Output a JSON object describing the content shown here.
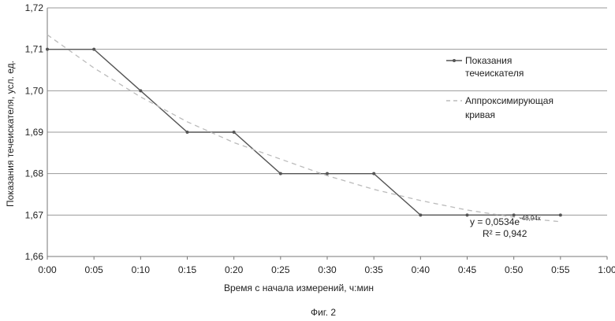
{
  "chart_data": {
    "type": "line",
    "title": "",
    "xlabel": "Время с начала измерений, ч:мин",
    "ylabel": "Показания течеискателя, усл. ед.",
    "x_ticks": [
      "0:00",
      "0:05",
      "0:10",
      "0:15",
      "0:20",
      "0:25",
      "0:30",
      "0:35",
      "0:40",
      "0:45",
      "0:50",
      "0:55",
      "1:00"
    ],
    "y_ticks": [
      "1,66",
      "1,67",
      "1,68",
      "1,69",
      "1,70",
      "1,71",
      "1,72"
    ],
    "xlim": [
      "0:00",
      "1:00"
    ],
    "ylim": [
      1.66,
      1.72
    ],
    "grid": "horizontal",
    "legend_position": "right",
    "series": [
      {
        "name": "Показания течеискателя",
        "style": "solid-with-markers",
        "color": "#555555",
        "x": [
          "0:00",
          "0:05",
          "0:10",
          "0:15",
          "0:20",
          "0:25",
          "0:30",
          "0:35",
          "0:40",
          "0:45",
          "0:50",
          "0:55"
        ],
        "y": [
          1.71,
          1.71,
          1.7,
          1.69,
          1.69,
          1.68,
          1.68,
          1.68,
          1.67,
          1.67,
          1.67,
          1.67
        ]
      },
      {
        "name": "Аппроксимирующая кривая",
        "style": "dashed",
        "color": "#bbbbbb",
        "x": [
          "0:00",
          "0:05",
          "0:10",
          "0:15",
          "0:20",
          "0:25",
          "0:30",
          "0:35",
          "0:40",
          "0:45",
          "0:50",
          "0:55"
        ],
        "y": [
          1.7135,
          1.7055,
          1.6985,
          1.6925,
          1.6875,
          1.6835,
          1.6795,
          1.6762,
          1.6735,
          1.6712,
          1.6695,
          1.6684
        ]
      }
    ],
    "legend": {
      "series1_line1": "Показания",
      "series1_line2": "течеискателя",
      "series2_line1": "Аппроксимирующая",
      "series2_line2": "кривая"
    },
    "equation": {
      "base": "y = 0,0534e",
      "exponent": "-48,94x",
      "r2": "R² = 0,942"
    }
  },
  "caption": "Фиг. 2"
}
